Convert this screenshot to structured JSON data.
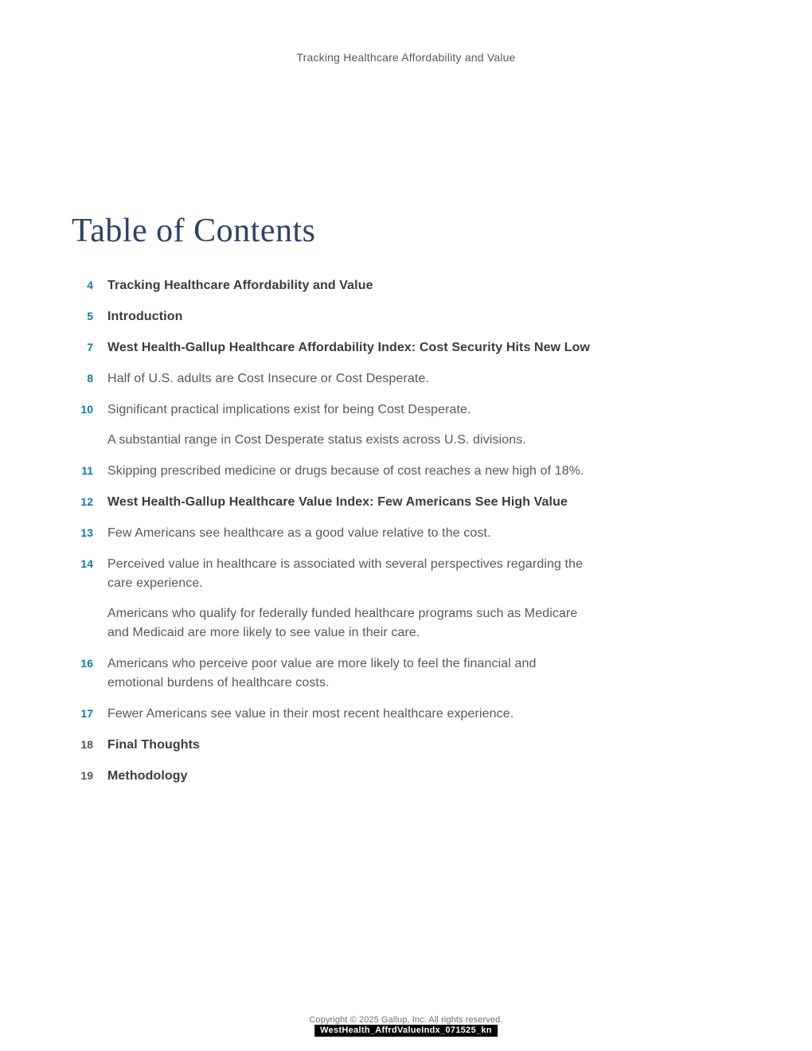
{
  "document": {
    "running_header": "Tracking Healthcare Affordability and Value",
    "title": "Table of Contents",
    "footer": {
      "copyright": "Copyright © 2025 Gallup, Inc. All rights reserved.",
      "filename": "WestHealth_AffrdValueIndx_071525_kn"
    },
    "colors": {
      "accent_teal": "#1478a0",
      "title_navy": "#2e4266",
      "bold_text": "#383b41",
      "body_text": "#54575d",
      "muted_number": "#515459",
      "filename_box_bg": "#000000",
      "filename_box_text": "#ffffff"
    }
  },
  "toc": {
    "entries": [
      {
        "page": "4",
        "label": "Tracking Healthcare Affordability and Value",
        "bold": true,
        "num_muted": false
      },
      {
        "page": "5",
        "label": "Introduction",
        "bold": true,
        "num_muted": false
      },
      {
        "page": "7",
        "label": "West Health-Gallup Healthcare Affordability Index: Cost Security Hits New Low",
        "bold": true,
        "num_muted": false
      },
      {
        "page": "8",
        "label": "Half of U.S. adults are Cost Insecure or Cost Desperate.",
        "bold": false,
        "num_muted": false
      },
      {
        "page": "10",
        "label": "Significant practical implications exist for being Cost Desperate.",
        "bold": false,
        "num_muted": false
      },
      {
        "page": "",
        "label": "A substantial range in Cost Desperate status exists across U.S. divisions.",
        "bold": false,
        "num_muted": false
      },
      {
        "page": "11",
        "label": "Skipping prescribed medicine or drugs because of cost reaches a new high of 18%.",
        "bold": false,
        "num_muted": false
      },
      {
        "page": "12",
        "label": "West Health-Gallup Healthcare Value Index: Few Americans See High Value",
        "bold": true,
        "num_muted": false
      },
      {
        "page": "13",
        "label": "Few Americans see healthcare as a good value relative to the cost.",
        "bold": false,
        "num_muted": false
      },
      {
        "page": "14",
        "label": "Perceived value in healthcare is associated with several perspectives regarding the\ncare experience.",
        "bold": false,
        "num_muted": false
      },
      {
        "page": "",
        "label": "Americans who qualify for federally funded healthcare programs such as Medicare\nand Medicaid are more likely to see value in their care.",
        "bold": false,
        "num_muted": false
      },
      {
        "page": "16",
        "label": "Americans who perceive poor value are more likely to feel the financial and\nemotional burdens of healthcare costs.",
        "bold": false,
        "num_muted": false
      },
      {
        "page": "17",
        "label": "Fewer Americans see value in their most recent healthcare experience.",
        "bold": false,
        "num_muted": false
      },
      {
        "page": "18",
        "label": "Final Thoughts",
        "bold": true,
        "num_muted": true
      },
      {
        "page": "19",
        "label": "Methodology",
        "bold": true,
        "num_muted": true
      }
    ]
  }
}
